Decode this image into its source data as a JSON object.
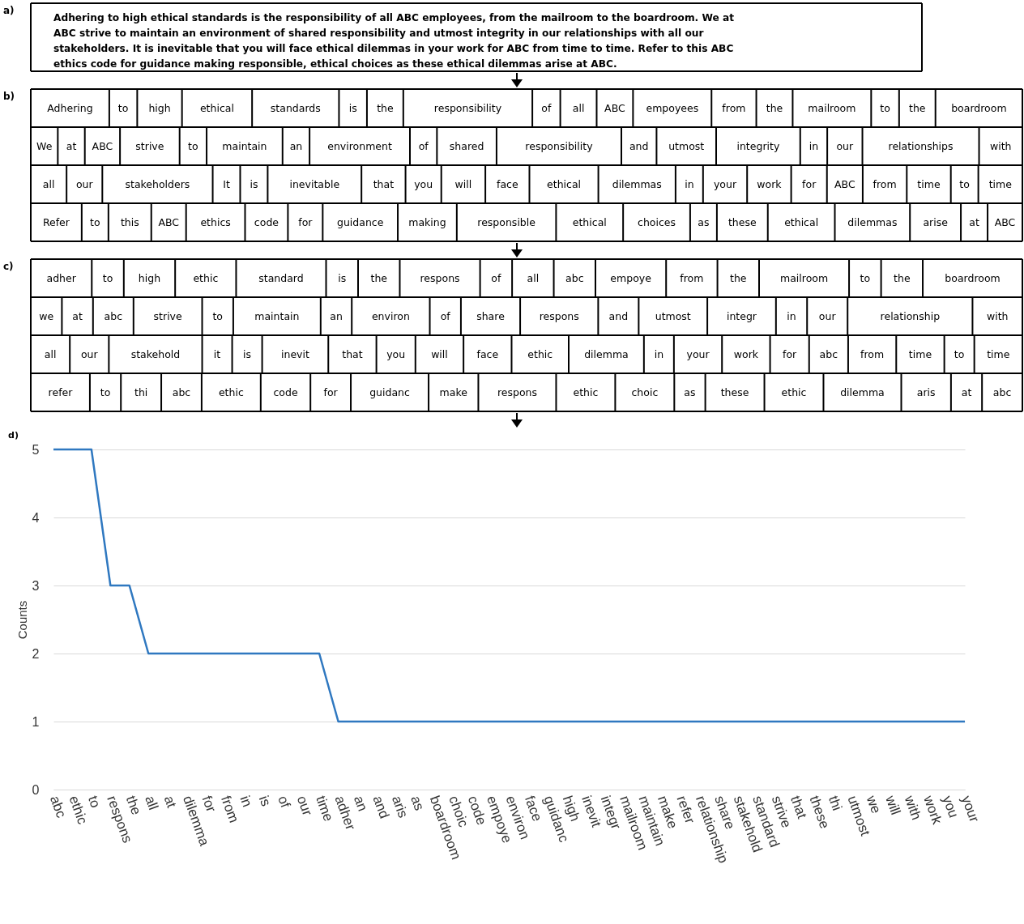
{
  "chart_data": [
    {
      "type": "other",
      "title": "a)",
      "annotations": [
        "Adhering to high ethical standards is the responsibility of all ABC employees, from the mailroom to the boardroom. We at",
        "ABC strive to maintain an environment of shared responsibility and utmost integrity in our relationships with all our",
        "stakeholders. It is inevitable that you will face ethical dilemmas in your work for ABC from time to time. Refer to this ABC",
        "ethics code for guidance making responsible, ethical choices as these ethical dilemmas arise at ABC."
      ]
    },
    {
      "type": "other",
      "title": "b)",
      "cell_labels": [
        [
          "Adhering",
          "to",
          "high",
          "ethical",
          "standards",
          "is",
          "the",
          "responsibility",
          "of",
          "all",
          "ABC",
          "empoyees",
          "from",
          "the",
          "mailroom",
          "to",
          "the",
          "boardroom"
        ],
        [
          "We",
          "at",
          "ABC",
          "strive",
          "to",
          "maintain",
          "an",
          "environment",
          "of",
          "shared",
          "responsibility",
          "and",
          "utmost",
          "integrity",
          "in",
          "our",
          "relationships",
          "with"
        ],
        [
          "all",
          "our",
          "stakeholders",
          "It",
          "is",
          "inevitable",
          "that",
          "you",
          "will",
          "face",
          "ethical",
          "dilemmas",
          "in",
          "your",
          "work",
          "for",
          "ABC",
          "from",
          "time",
          "to",
          "time"
        ],
        [
          "Refer",
          "to",
          "this",
          "ABC",
          "ethics",
          "code",
          "for",
          "guidance",
          "making",
          "responsible",
          "ethical",
          "choices",
          "as",
          "these",
          "ethical",
          "dilemmas",
          "arise",
          "at",
          "ABC"
        ]
      ]
    },
    {
      "type": "other",
      "title": "c)",
      "cell_labels": [
        [
          "adher",
          "to",
          "high",
          "ethic",
          "standard",
          "is",
          "the",
          "respons",
          "of",
          "all",
          "abc",
          "empoye",
          "from",
          "the",
          "mailroom",
          "to",
          "the",
          "boardroom"
        ],
        [
          "we",
          "at",
          "abc",
          "strive",
          "to",
          "maintain",
          "an",
          "environ",
          "of",
          "share",
          "respons",
          "and",
          "utmost",
          "integr",
          "in",
          "our",
          "relationship",
          "with"
        ],
        [
          "all",
          "our",
          "stakehold",
          "it",
          "is",
          "inevit",
          "that",
          "you",
          "will",
          "face",
          "ethic",
          "dilemma",
          "in",
          "your",
          "work",
          "for",
          "abc",
          "from",
          "time",
          "to",
          "time"
        ],
        [
          "refer",
          "to",
          "thi",
          "abc",
          "ethic",
          "code",
          "for",
          "guidanc",
          "make",
          "respons",
          "ethic",
          "choic",
          "as",
          "these",
          "ethic",
          "dilemma",
          "aris",
          "at",
          "abc"
        ]
      ]
    },
    {
      "type": "line",
      "title": "d)",
      "ylabel": "Counts",
      "color": "#2f78c0",
      "grid": "y",
      "marker": "none",
      "categories": [
        "abc",
        "ethic",
        "to",
        "respons",
        "the",
        "all",
        "at",
        "dilemma",
        "for",
        "from",
        "in",
        "is",
        "of",
        "our",
        "time",
        "adher",
        "an",
        "and",
        "aris",
        "as",
        "boardroom",
        "choic",
        "code",
        "empoye",
        "environ",
        "face",
        "guidanc",
        "high",
        "inevit",
        "integr",
        "mailroom",
        "maintain",
        "make",
        "refer",
        "relationship",
        "share",
        "stakehold",
        "standard",
        "strive",
        "that",
        "these",
        "thi",
        "utmost",
        "we",
        "will",
        "with",
        "work",
        "you",
        "your"
      ],
      "values": [
        5,
        5,
        5,
        3,
        3,
        2,
        2,
        2,
        2,
        2,
        2,
        2,
        2,
        2,
        2,
        1,
        1,
        1,
        1,
        1,
        1,
        1,
        1,
        1,
        1,
        1,
        1,
        1,
        1,
        1,
        1,
        1,
        1,
        1,
        1,
        1,
        1,
        1,
        1,
        1,
        1,
        1,
        1,
        1,
        1,
        1,
        1,
        1,
        1
      ],
      "ylim": [
        0,
        5
      ],
      "yticks": [
        0,
        1,
        2,
        3,
        4,
        5
      ]
    }
  ]
}
